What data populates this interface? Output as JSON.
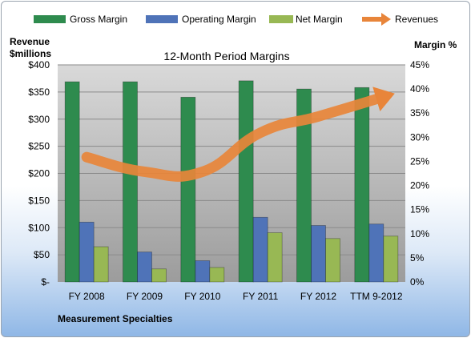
{
  "chart_data": {
    "type": "bar",
    "title": "12-Month Period Margins",
    "footer": "Measurement Specialties",
    "y_left_label": [
      "Revenue",
      "$millions"
    ],
    "y_right_label": "Margin %",
    "categories": [
      "FY 2008",
      "FY 2009",
      "FY 2010",
      "FY 2011",
      "FY 2012",
      "TTM 9-2012"
    ],
    "y_left_ticks": [
      "$-",
      "$50",
      "$100",
      "$150",
      "$200",
      "$250",
      "$300",
      "$350",
      "$400"
    ],
    "y_right_ticks": [
      "0%",
      "5%",
      "10%",
      "15%",
      "20%",
      "25%",
      "30%",
      "35%",
      "40%",
      "45%"
    ],
    "ylim_left": [
      0,
      400
    ],
    "ylim_right": [
      0,
      45
    ],
    "legend_position": "top",
    "series": [
      {
        "name": "Gross Margin",
        "axis": "right",
        "color": "#2e8b4e",
        "values": [
          41.5,
          41.5,
          38.3,
          41.7,
          40.0,
          40.3
        ]
      },
      {
        "name": "Operating Margin",
        "axis": "right",
        "color": "#4f73b8",
        "values": [
          12.4,
          6.2,
          4.4,
          13.4,
          11.7,
          12.0
        ]
      },
      {
        "name": "Net Margin",
        "axis": "right",
        "color": "#98b854",
        "values": [
          7.3,
          2.7,
          3.0,
          10.2,
          9.0,
          9.5
        ]
      },
      {
        "name": "Revenues",
        "axis": "left",
        "type": "line",
        "color": "#e8853a",
        "values": [
          230,
          203,
          203,
          275,
          305,
          337
        ]
      }
    ]
  }
}
